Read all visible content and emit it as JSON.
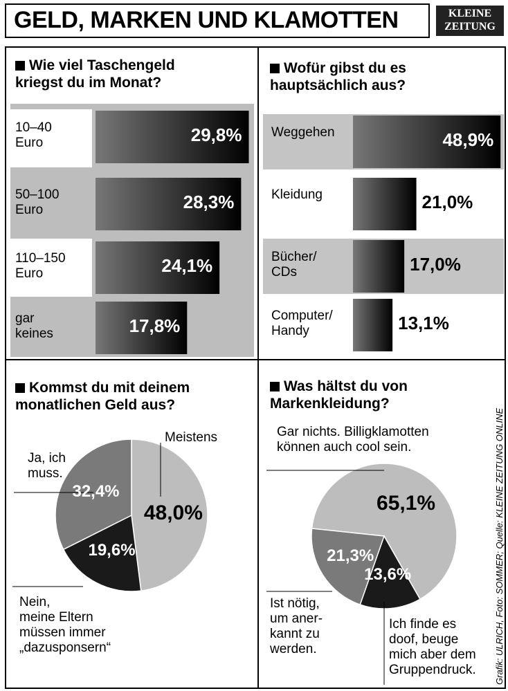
{
  "header": {
    "title": "GELD, MARKEN UND KLAMOTTEN",
    "logo": "KLEINE\nZEITUNG"
  },
  "credit": "Grafik: ULRICH, Foto: SOMMER; Quelle: KLEINE ZEITUNG ONLINE",
  "chart_data": [
    {
      "type": "bar",
      "title": "Wie viel Taschengeld\nkriegst du im Monat?",
      "categories": [
        "10–40\nEuro",
        "50–100\nEuro",
        "110–150\nEuro",
        "gar\nkeines"
      ],
      "values": [
        29.8,
        28.3,
        24.1,
        17.8
      ],
      "value_labels": [
        "29,8%",
        "28,3%",
        "24,1%",
        "17,8%"
      ],
      "xlim": [
        0,
        30
      ],
      "color": "#1a1a1a"
    },
    {
      "type": "bar",
      "title": "Wofür gibst du es\nhauptsächlich aus?",
      "categories": [
        "Weggehen",
        "Kleidung",
        "Bücher/\nCDs",
        "Computer/\nHandy"
      ],
      "values": [
        48.9,
        21.0,
        17.0,
        13.1
      ],
      "value_labels": [
        "48,9%",
        "21,0%",
        "17,0%",
        "13,1%"
      ],
      "xlim": [
        0,
        50
      ],
      "color": "#1a1a1a"
    },
    {
      "type": "pie",
      "title": "Kommst du mit deinem\nmonatlichen Geld aus?",
      "categories": [
        "Meistens",
        "Nein,\nmeine Eltern\nmüssen immer\n„dazusponsern“",
        "Ja, ich\nmuss."
      ],
      "values": [
        48.0,
        19.6,
        32.4
      ],
      "value_labels": [
        "48,0%",
        "19,6%",
        "32,4%"
      ],
      "colors": [
        "#bdbdbd",
        "#1a1a1a",
        "#7a7a7a"
      ]
    },
    {
      "type": "pie",
      "title": "Was hältst du von\nMarkenkleidung?",
      "categories": [
        "Gar nichts. Billigklamotten\nkönnen auch cool sein.",
        "Ich finde es\ndoof, beuge\nmich aber dem\nGruppendruck.",
        "Ist nötig,\num aner-\nkannt zu\nwerden."
      ],
      "values": [
        65.1,
        13.6,
        21.3
      ],
      "value_labels": [
        "65,1%",
        "13,6%",
        "21,3%"
      ],
      "colors": [
        "#bdbdbd",
        "#1a1a1a",
        "#7a7a7a"
      ]
    }
  ]
}
